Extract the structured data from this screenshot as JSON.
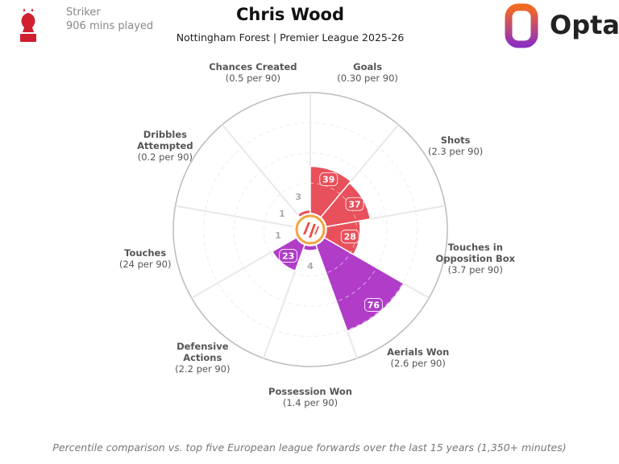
{
  "chart_data": {
    "type": "polar_bar",
    "title": "Chris Wood",
    "subtitle": "Nottingham Forest | Premier League 2025-26",
    "position": "Striker",
    "minutes": "906 mins played",
    "brand": "Opta",
    "footnote": "Percentile comparison vs. top five European league forwards over the last 15 years (1,350+ minutes)",
    "categories": [
      "Goals",
      "Shots",
      "Touches in Opposition Box",
      "Aerials Won",
      "Possession Won",
      "Defensive Actions",
      "Touches",
      "Dribbles Attempted",
      "Chances Created"
    ],
    "per90": [
      "(0.30 per 90)",
      "(2.3 per 90)",
      "(3.7 per 90)",
      "(2.6 per 90)",
      "(1.4 per 90)",
      "(2.2 per 90)",
      "(24 per 90)",
      "(0.2 per 90)",
      "(0.5 per 90)"
    ],
    "values": [
      39,
      37,
      28,
      76,
      4,
      23,
      1,
      1,
      3
    ],
    "colors": [
      "#e8505b",
      "#e8505b",
      "#e8505b",
      "#b03cc8",
      "#b03cc8",
      "#b03cc8",
      "#b03cc8",
      "#e8505b",
      "#e8505b"
    ],
    "rlim": [
      0,
      100
    ],
    "rticks": [
      25,
      50,
      75
    ]
  }
}
